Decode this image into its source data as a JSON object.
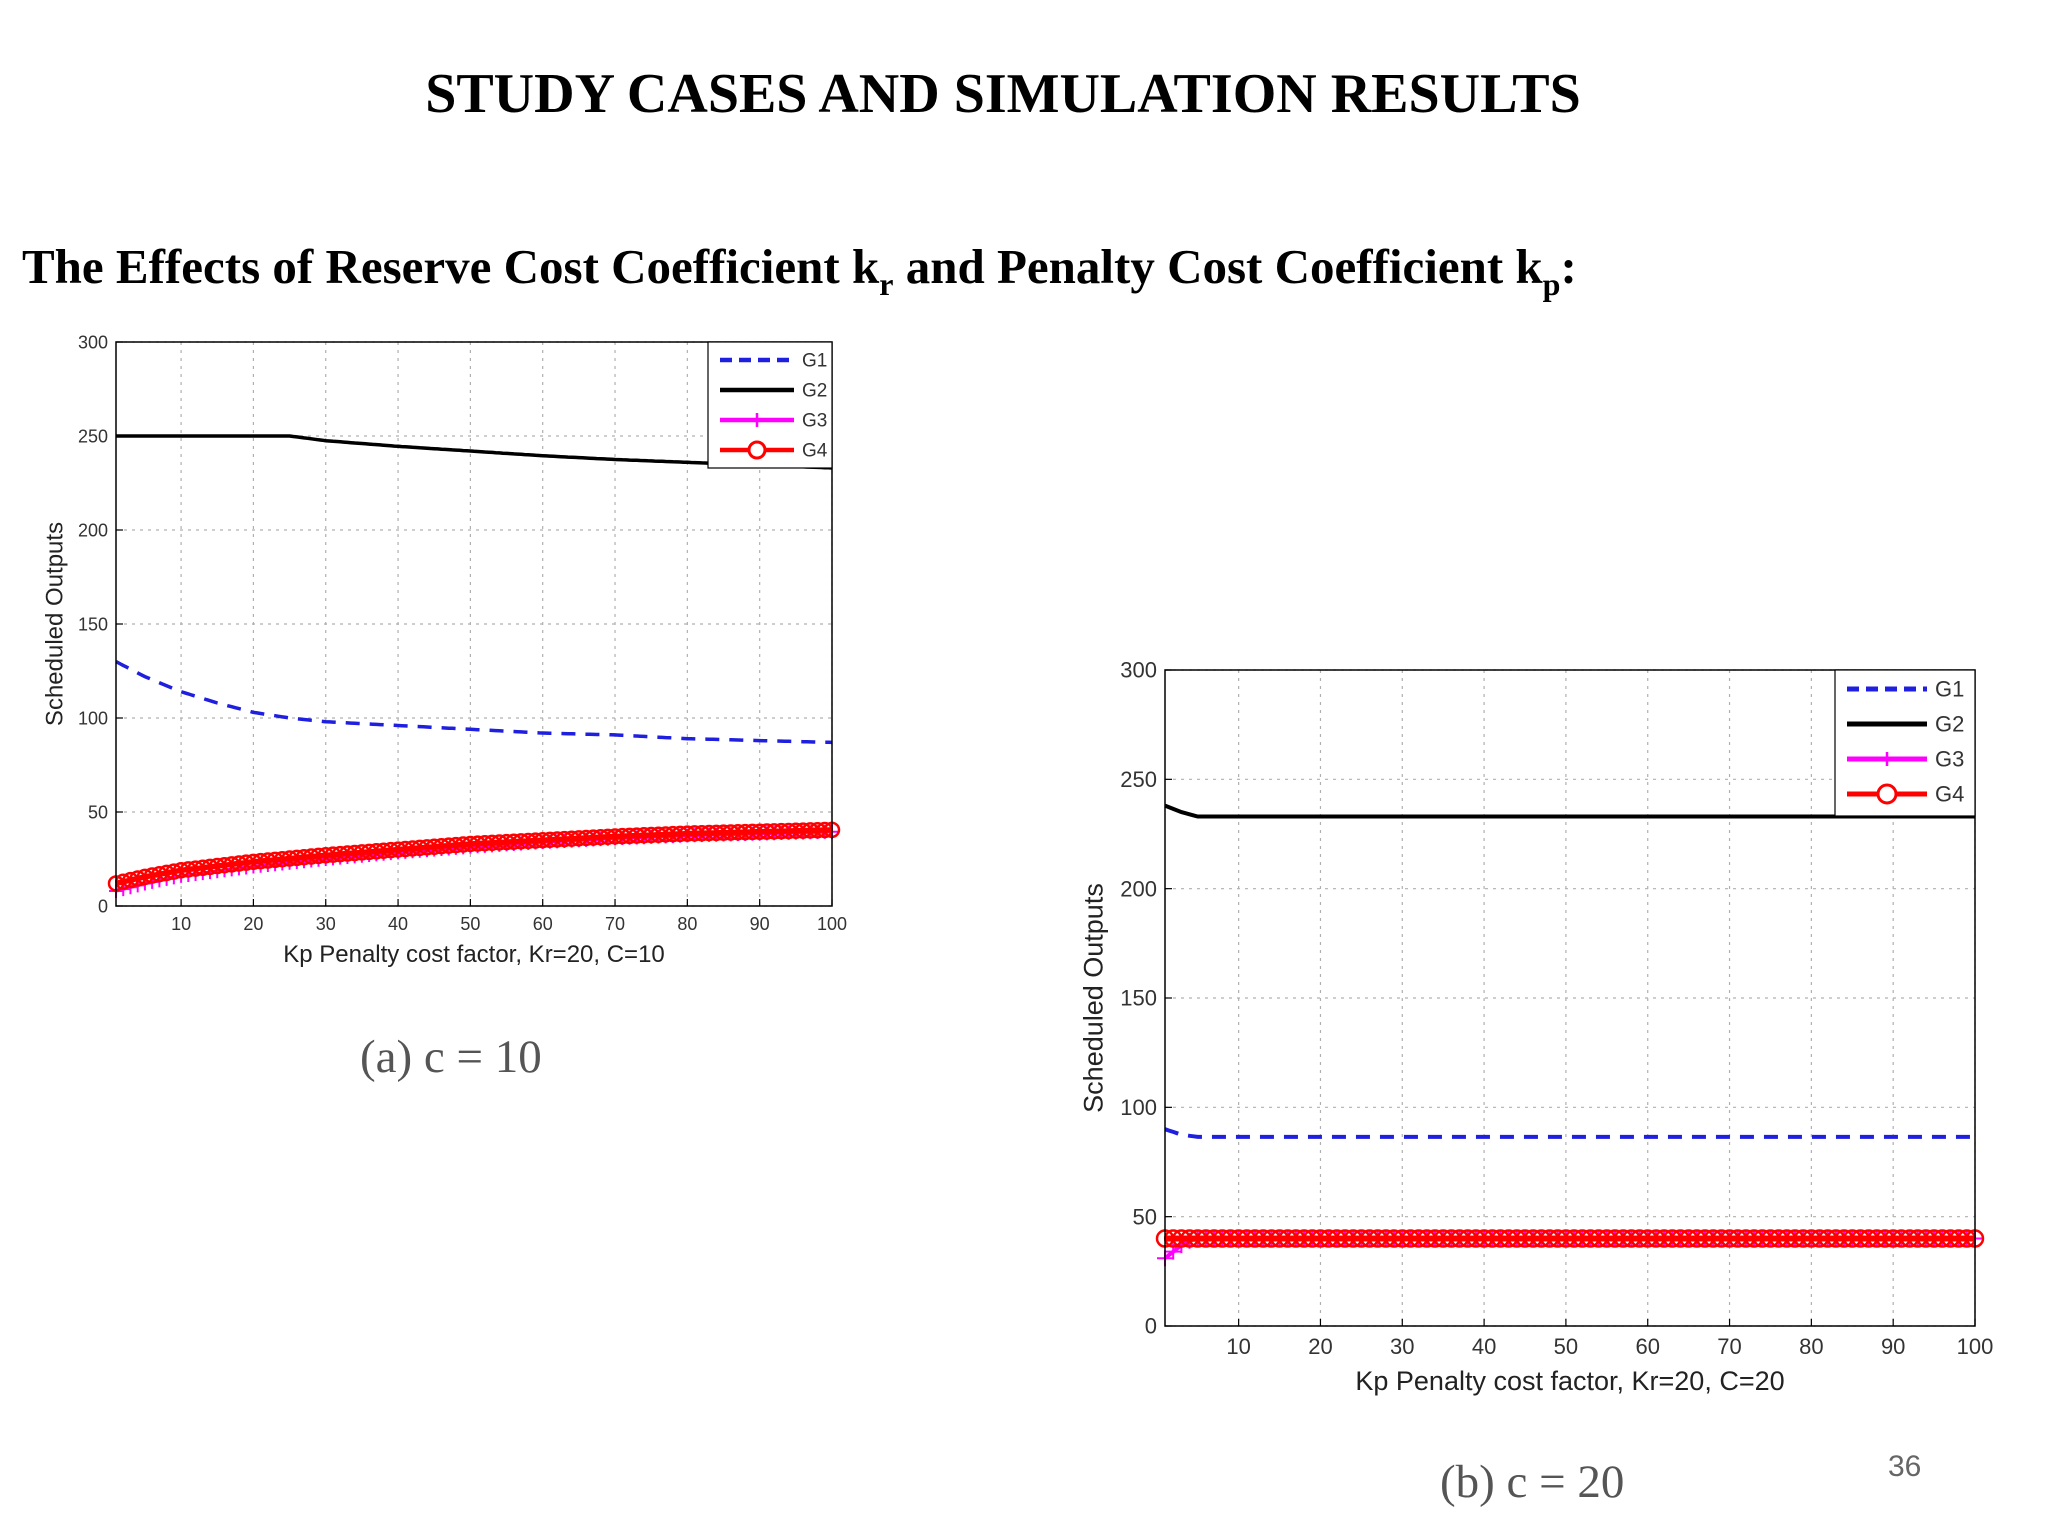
{
  "slide": {
    "title": "STUDY CASES AND SIMULATION RESULTS",
    "subtitle_main": "The Effects of  Reserve Cost Coefficient k",
    "subtitle_sub1": "r",
    "subtitle_mid": " and Penalty Cost Coefficient k",
    "subtitle_sub2": "p",
    "subtitle_end": ":",
    "page_number": "36"
  },
  "chart_data": [
    {
      "type": "line",
      "caption": "(a) c = 10",
      "xlabel": "Kp Penalty cost factor, Kr=20, C=10",
      "ylabel": "Scheduled Outputs",
      "xlim": [
        1,
        100
      ],
      "ylim": [
        0,
        300
      ],
      "xticks": [
        10,
        20,
        30,
        40,
        50,
        60,
        70,
        80,
        90,
        100
      ],
      "yticks": [
        0,
        50,
        100,
        150,
        200,
        250,
        300
      ],
      "grid": true,
      "legend_position": "top-right",
      "series": [
        {
          "name": "G1",
          "style": "dashed",
          "color": "#1f1fe0",
          "x": [
            1,
            5,
            10,
            15,
            20,
            25,
            30,
            40,
            50,
            60,
            70,
            80,
            90,
            100
          ],
          "y": [
            130,
            122,
            114,
            108,
            103,
            100,
            98,
            96,
            94,
            92,
            91,
            89,
            88,
            87
          ]
        },
        {
          "name": "G2",
          "style": "solid",
          "color": "#000000",
          "x": [
            1,
            10,
            20,
            25,
            30,
            40,
            50,
            60,
            70,
            80,
            90,
            100
          ],
          "y": [
            250,
            250,
            250,
            250,
            247.5,
            244.5,
            242,
            239.5,
            237.5,
            236,
            234.5,
            233
          ]
        },
        {
          "name": "G3",
          "style": "plus",
          "color": "#ff00ff",
          "x": [
            1,
            5,
            10,
            20,
            30,
            40,
            50,
            60,
            70,
            80,
            90,
            100
          ],
          "y": [
            8,
            12,
            16,
            21,
            25,
            28.5,
            31.5,
            34,
            36,
            37.5,
            38.5,
            39.5
          ]
        },
        {
          "name": "G4",
          "style": "circle",
          "color": "#ff0000",
          "x": [
            1,
            5,
            10,
            20,
            30,
            40,
            50,
            60,
            70,
            80,
            90,
            100
          ],
          "y": [
            12,
            15.5,
            19,
            23.5,
            27,
            30,
            33,
            35,
            37,
            38.5,
            39.5,
            40.5
          ]
        }
      ]
    },
    {
      "type": "line",
      "caption": "(b) c = 20",
      "xlabel": "Kp Penalty cost factor, Kr=20, C=20",
      "ylabel": "Scheduled Outputs",
      "xlim": [
        1,
        100
      ],
      "ylim": [
        0,
        300
      ],
      "xticks": [
        10,
        20,
        30,
        40,
        50,
        60,
        70,
        80,
        90,
        100
      ],
      "yticks": [
        0,
        50,
        100,
        150,
        200,
        250,
        300
      ],
      "grid": true,
      "legend_position": "top-right",
      "series": [
        {
          "name": "G1",
          "style": "dashed",
          "color": "#1f1fe0",
          "x": [
            1,
            3,
            5,
            10,
            20,
            40,
            60,
            80,
            100
          ],
          "y": [
            90,
            87.5,
            86.5,
            86.5,
            86.5,
            86.5,
            86.5,
            86.5,
            86.5
          ]
        },
        {
          "name": "G2",
          "style": "solid",
          "color": "#000000",
          "x": [
            1,
            3,
            5,
            10,
            20,
            40,
            60,
            80,
            100
          ],
          "y": [
            238,
            235,
            233,
            233,
            233,
            233,
            233,
            233,
            233
          ]
        },
        {
          "name": "G3",
          "style": "plus",
          "color": "#ff00ff",
          "x": [
            1,
            2,
            3,
            4,
            5,
            10,
            20,
            40,
            60,
            80,
            100
          ],
          "y": [
            31,
            34,
            37,
            39,
            40,
            40,
            40,
            40,
            40,
            40,
            40
          ]
        },
        {
          "name": "G4",
          "style": "circle",
          "color": "#ff0000",
          "x": [
            1,
            5,
            10,
            20,
            40,
            60,
            80,
            100
          ],
          "y": [
            40,
            40,
            40,
            40,
            40,
            40,
            40,
            40
          ]
        }
      ]
    }
  ]
}
